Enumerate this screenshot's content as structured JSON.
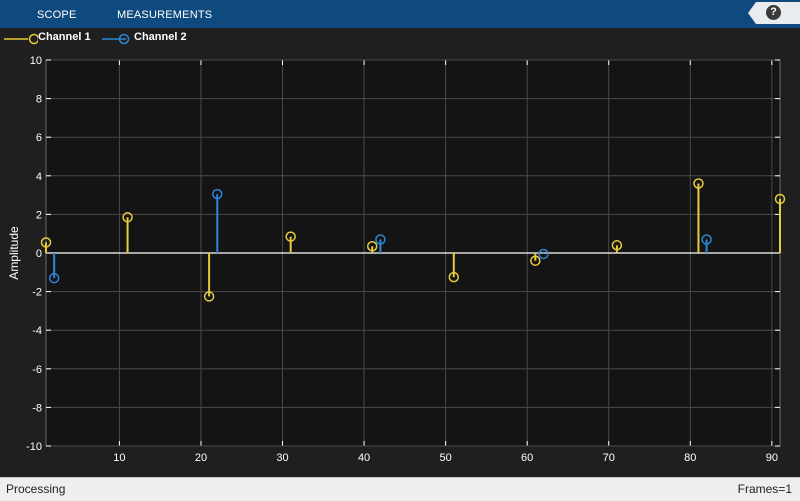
{
  "toolbar": {
    "tabs": [
      {
        "label": "SCOPE"
      },
      {
        "label": "MEASUREMENTS"
      }
    ],
    "help_label": "?",
    "help_icon": "help-icon"
  },
  "status": {
    "left": "Processing",
    "right": "Frames=1"
  },
  "colors": {
    "channel1": "#e8cc3c",
    "channel2": "#2d86d8",
    "plot_background": "#141414",
    "grid": "#4a4a4a"
  },
  "chart_data": {
    "type": "stem",
    "title": "",
    "xlabel": "",
    "ylabel": "Amplitude",
    "xlim": [
      1,
      91
    ],
    "ylim": [
      -10,
      10
    ],
    "xticks": [
      10,
      20,
      30,
      40,
      50,
      60,
      70,
      80,
      90
    ],
    "yticks": [
      -10,
      -8,
      -6,
      -4,
      -2,
      0,
      2,
      4,
      6,
      8,
      10
    ],
    "grid": true,
    "legend_position": "top-left",
    "series": [
      {
        "name": "Channel 1",
        "color": "#e8cc3c",
        "x": [
          1,
          11,
          21,
          31,
          41,
          51,
          61,
          71,
          81,
          91
        ],
        "y": [
          0.55,
          1.85,
          -2.25,
          0.85,
          0.35,
          -1.25,
          -0.4,
          0.4,
          3.6,
          2.8
        ]
      },
      {
        "name": "Channel 2",
        "color": "#2d86d8",
        "x": [
          2,
          22,
          42,
          62,
          82
        ],
        "y": [
          -1.3,
          3.05,
          0.7,
          -0.05,
          0.7
        ]
      }
    ]
  }
}
